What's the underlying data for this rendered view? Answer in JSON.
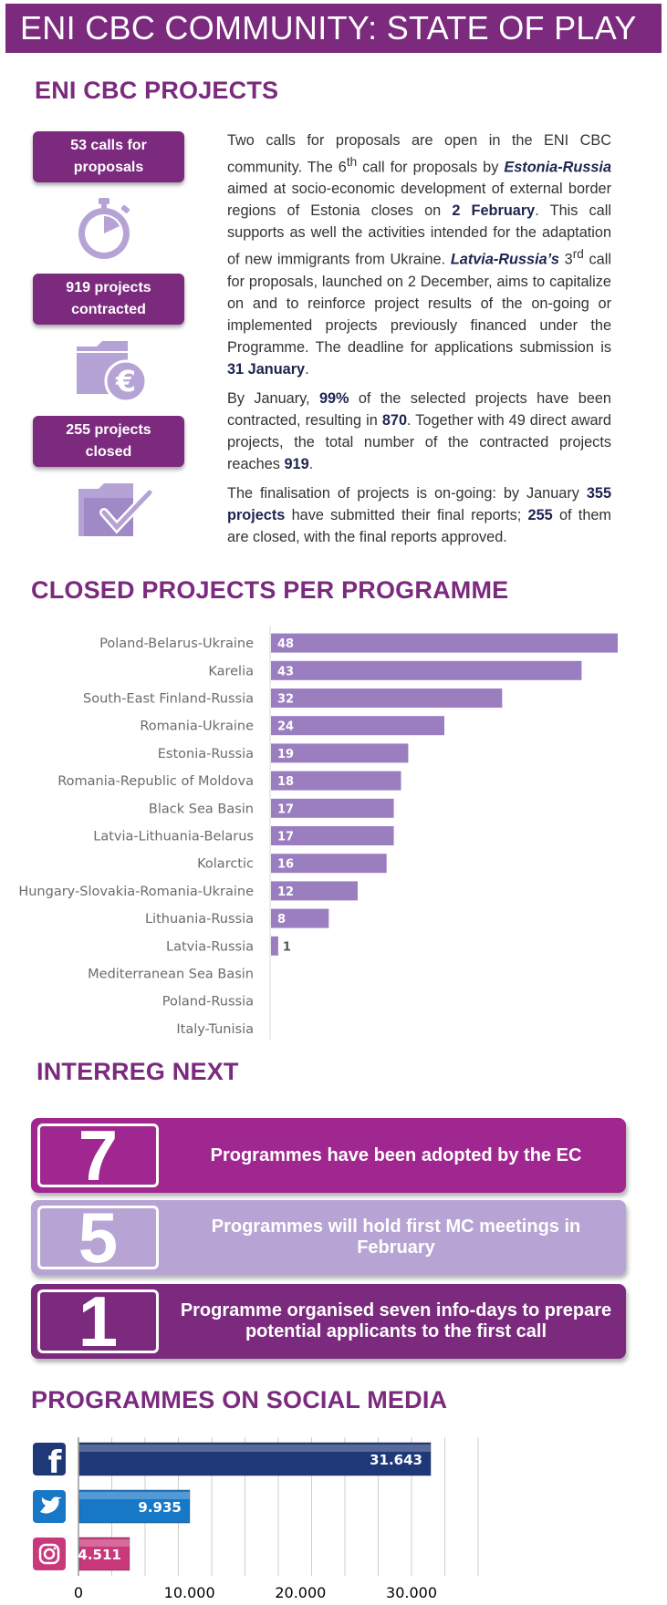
{
  "banner": {
    "title": "ENI CBC COMMUNITY: STATE OF PLAY"
  },
  "projects": {
    "title": "ENI CBC PROJECTS",
    "stats": [
      {
        "line1": "53 calls for",
        "line2": "proposals",
        "icon": "stopwatch-icon"
      },
      {
        "line1": "919 projects",
        "line2": "contracted",
        "icon": "folder-euro-icon"
      },
      {
        "line1": "255 projects",
        "line2": "closed",
        "icon": "folder-check-icon"
      }
    ],
    "para1": {
      "t1": "Two calls for proposals are open in the ENI CBC community. The 6",
      "sup1": "th",
      "t2": " call for proposals by ",
      "prog1": "Estonia-Russia",
      "t3": " aimed at socio-economic development of external border regions of Estonia closes on ",
      "date1": "2 February",
      "t4": ". This call supports as well the activities intended for the adaptation of new immigrants from Ukraine. ",
      "prog2": "Latvia-Russia’s",
      "t5": " 3",
      "sup2": "rd",
      "t6": " call for proposals, launched on 2 December, aims to capitalize on and to reinforce project results of the on-going or implemented projects previously financed under the Programme. The deadline for applications submission is ",
      "date2": "31 January",
      "t7": "."
    },
    "para2": {
      "t1": "By January, ",
      "pct": "99%",
      "t2": " of the selected projects have been contracted, resulting in ",
      "n1": "870",
      "t3": ". Together with 49 direct award projects, the total number of the contracted projects reaches ",
      "n2": "919",
      "t4": "."
    },
    "para3": {
      "t1": "The finalisation of projects is on-going: by January ",
      "n1": "355 projects",
      "t2": " have submitted their final reports; ",
      "n2": "255",
      "t3": " of them are closed, with the final reports approved."
    }
  },
  "closed": {
    "title": "CLOSED PROJECTS PER PROGRAMME"
  },
  "chart_data": {
    "type": "bar",
    "orientation": "horizontal",
    "categories": [
      "Poland-Belarus-Ukraine",
      "Karelia",
      "South-East Finland-Russia",
      "Romania-Ukraine",
      "Estonia-Russia",
      "Romania-Republic of Moldova",
      "Black Sea Basin",
      "Latvia-Lithuania-Belarus",
      "Kolarctic",
      "Hungary-Slovakia-Romania-Ukraine",
      "Lithuania-Russia",
      "Latvia-Russia",
      "Mediterranean Sea Basin",
      "Poland-Russia",
      "Italy-Tunisia"
    ],
    "values": [
      48,
      43,
      32,
      24,
      19,
      18,
      17,
      17,
      16,
      12,
      8,
      1,
      0,
      0,
      0
    ],
    "title": "",
    "xlabel": "",
    "ylabel": "",
    "xlim": [
      0,
      50
    ],
    "bar_color": "#9b7ec0"
  },
  "interreg": {
    "title": "INTERREG NEXT",
    "cards": [
      {
        "num": "7",
        "text": "Programmes have been adopted by the EC",
        "color": "#a0278f"
      },
      {
        "num": "5",
        "text": "Programmes will  hold first MC meetings in February",
        "color": "#b7a4d4"
      },
      {
        "num": "1",
        "text": "Programme organised seven info-days to prepare potential applicants to the first call",
        "color": "#7b2a7e"
      }
    ]
  },
  "social": {
    "title": "PROGRAMMES ON SOCIAL MEDIA",
    "chart": {
      "type": "bar",
      "orientation": "horizontal",
      "categories": [
        "facebook",
        "twitter",
        "instagram"
      ],
      "values": [
        31643,
        9935,
        4511
      ],
      "value_labels": [
        "31.643",
        "9.935",
        "4.511"
      ],
      "icons": [
        "facebook-icon",
        "twitter-icon",
        "instagram-icon"
      ],
      "colors": [
        "#1f3878",
        "#1878c8",
        "#c8387a"
      ],
      "xlim": [
        0,
        36000
      ],
      "ticks": [
        0,
        10000,
        20000,
        30000
      ],
      "tick_labels": [
        "0",
        "10.000",
        "20.000",
        "30.000"
      ]
    }
  }
}
